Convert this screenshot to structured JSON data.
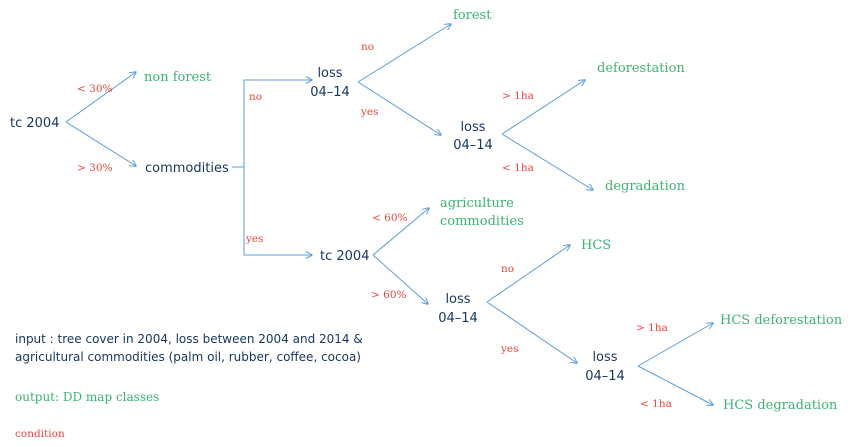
{
  "nodes": {
    "tc2004_root": "tc 2004",
    "commodities": "commodities",
    "non_forest": "non forest",
    "loss_a_1": "loss",
    "loss_a_2": "04–14",
    "forest": "forest",
    "loss_b_1": "loss",
    "loss_b_2": "04–14",
    "deforestation": "deforestation",
    "degradation": "degradation",
    "tc2004_mid": "tc 2004",
    "agri_1": "agriculture",
    "agri_2": "commodities",
    "loss_c_1": "loss",
    "loss_c_2": "04–14",
    "hcs": "HCS",
    "loss_d_1": "loss",
    "loss_d_2": "04–14",
    "hcs_deforestation": "HCS deforestation",
    "hcs_degradation": "HCS degradation"
  },
  "conditions": {
    "lt30": "< 30%",
    "gt30": "> 30%",
    "no_a": "no",
    "yes_a": "yes",
    "no_b": "no",
    "yes_b": "yes",
    "gt1ha_b": "> 1ha",
    "lt1ha_b": "< 1ha",
    "lt60": "< 60%",
    "gt60": "> 60%",
    "no_c": "no",
    "yes_c": "yes",
    "gt1ha_d": "> 1ha",
    "lt1ha_d": "< 1ha"
  },
  "legend": {
    "input_1": "input : tree cover in 2004, loss between 2004 and 2014 &",
    "input_2": "agricultural commodities (palm oil, rubber, coffee, cocoa)",
    "output": "output: DD map classes",
    "condition": "condition"
  },
  "colors": {
    "node_dark": "#17365d",
    "node_green": "#3cb371",
    "condition_red": "#e8463c",
    "edge_blue": "#5b9bd5"
  }
}
